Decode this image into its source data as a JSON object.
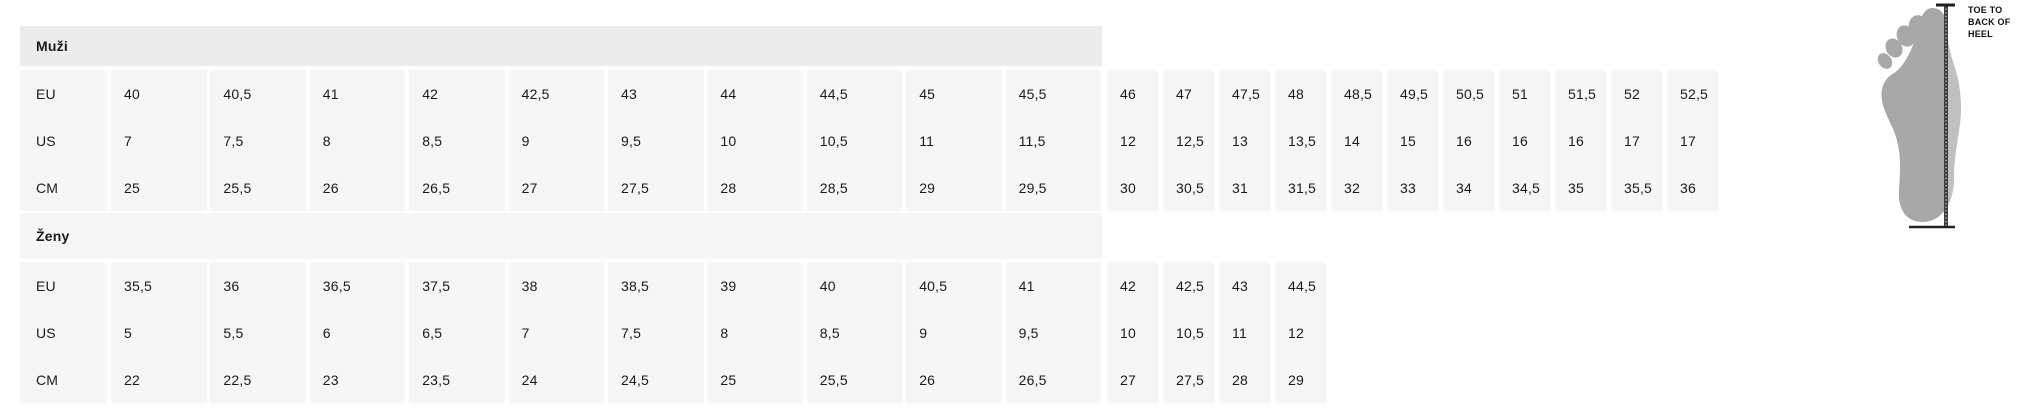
{
  "colors": {
    "band_men": "#ececec",
    "band_women": "#f6f6f6",
    "cell_bg": "#f6f6f6",
    "text": "#1a1a1a",
    "foot_gray": "#a8a8aa",
    "foot_gray_light": "#b6b6b8",
    "measure_line": "#3e3e40"
  },
  "sections": [
    {
      "label": "Muži",
      "row_labels": [
        "EU",
        "US",
        "CM"
      ],
      "wide": {
        "EU": [
          "40",
          "40,5",
          "41",
          "42",
          "42,5",
          "43",
          "44",
          "44,5",
          "45",
          "45,5"
        ],
        "US": [
          "7",
          "7,5",
          "8",
          "8,5",
          "9",
          "9,5",
          "10",
          "10,5",
          "11",
          "11,5"
        ],
        "CM": [
          "25",
          "25,5",
          "26",
          "26,5",
          "27",
          "27,5",
          "28",
          "28,5",
          "29",
          "29,5"
        ]
      },
      "narrow": {
        "EU": [
          "46",
          "47",
          "47,5",
          "48",
          "48,5",
          "49,5",
          "50,5",
          "51",
          "51,5",
          "52",
          "52,5"
        ],
        "US": [
          "12",
          "12,5",
          "13",
          "13,5",
          "14",
          "15",
          "16",
          "16",
          "16",
          "17",
          "17"
        ],
        "CM": [
          "30",
          "30,5",
          "31",
          "31,5",
          "32",
          "33",
          "34",
          "34,5",
          "35",
          "35,5",
          "36"
        ]
      }
    },
    {
      "label": "Ženy",
      "row_labels": [
        "EU",
        "US",
        "CM"
      ],
      "wide": {
        "EU": [
          "35,5",
          "36",
          "36,5",
          "37,5",
          "38",
          "38,5",
          "39",
          "40",
          "40,5",
          "41"
        ],
        "US": [
          "5",
          "5,5",
          "6",
          "6,5",
          "7",
          "7,5",
          "8",
          "8,5",
          "9",
          "9,5"
        ],
        "CM": [
          "22",
          "22,5",
          "23",
          "23,5",
          "24",
          "24,5",
          "25",
          "25,5",
          "26",
          "26,5"
        ]
      },
      "narrow": {
        "EU": [
          "42",
          "42,5",
          "43",
          "44,5"
        ],
        "US": [
          "10",
          "10,5",
          "11",
          "12"
        ],
        "CM": [
          "27",
          "27,5",
          "28",
          "29"
        ]
      }
    }
  ],
  "foot": {
    "label_lines": [
      "TOE TO",
      "BACK OF",
      "HEEL"
    ]
  }
}
